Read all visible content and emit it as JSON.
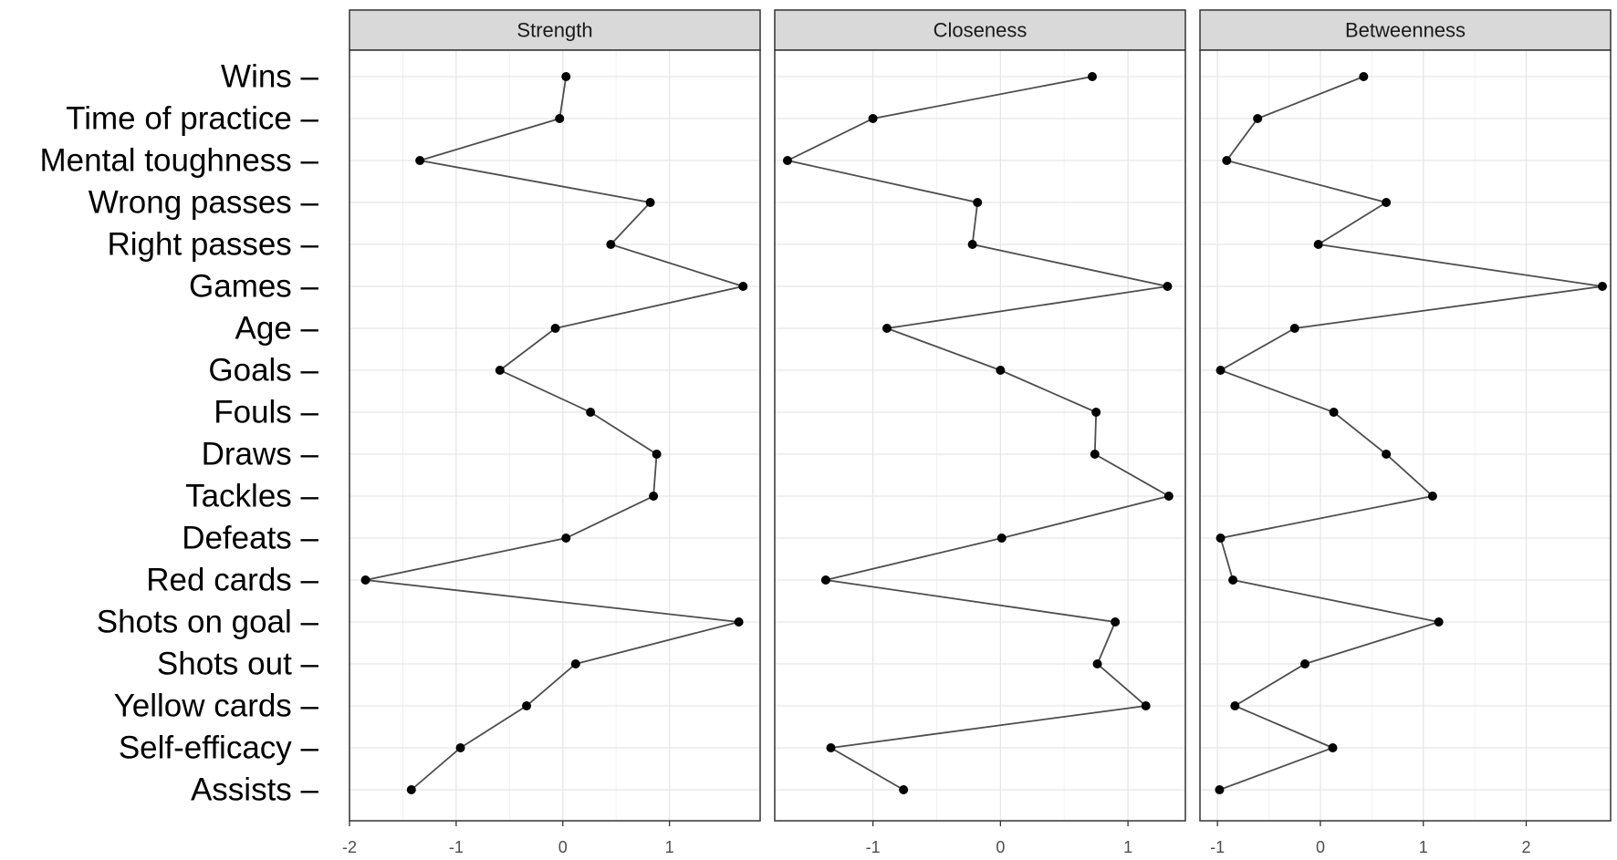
{
  "chart_data": {
    "type": "line",
    "orientation": "horizontal",
    "grid": true,
    "categories": [
      "Wins",
      "Time of practice",
      "Mental toughness",
      "Wrong passes",
      "Right passes",
      "Games",
      "Age",
      "Goals",
      "Fouls",
      "Draws",
      "Tackles",
      "Defeats",
      "Red cards",
      "Shots on goal",
      "Shots out",
      "Yellow cards",
      "Self-efficacy",
      "Assists"
    ],
    "facets": [
      {
        "name": "Strength",
        "xlim": [
          -2.0,
          1.85
        ],
        "ticks": [
          -2,
          -1,
          0,
          1
        ],
        "values": [
          0.03,
          -0.03,
          -1.34,
          0.82,
          0.45,
          1.69,
          -0.07,
          -0.59,
          0.26,
          0.88,
          0.85,
          0.03,
          -1.85,
          1.65,
          0.12,
          -0.34,
          -0.96,
          -1.42
        ]
      },
      {
        "name": "Closeness",
        "xlim": [
          -1.77,
          1.45
        ],
        "ticks": [
          -1,
          0,
          1
        ],
        "values": [
          0.72,
          -1.0,
          -1.67,
          -0.18,
          -0.22,
          1.31,
          -0.89,
          0.0,
          0.75,
          0.74,
          1.32,
          0.01,
          -1.37,
          0.9,
          0.76,
          1.14,
          -1.33,
          -0.76
        ]
      },
      {
        "name": "Betweenness",
        "xlim": [
          -1.17,
          2.82
        ],
        "ticks": [
          -1,
          0,
          1,
          2
        ],
        "values": [
          0.42,
          -0.61,
          -0.91,
          0.64,
          -0.02,
          2.74,
          -0.25,
          -0.97,
          0.13,
          0.64,
          1.09,
          -0.97,
          -0.85,
          1.15,
          -0.15,
          -0.83,
          0.12,
          -0.98
        ]
      }
    ]
  }
}
